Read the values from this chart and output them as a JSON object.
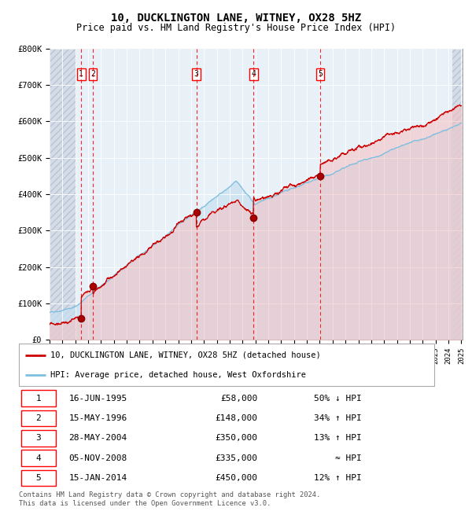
{
  "title": "10, DUCKLINGTON LANE, WITNEY, OX28 5HZ",
  "subtitle": "Price paid vs. HM Land Registry's House Price Index (HPI)",
  "title_fontsize": 10,
  "subtitle_fontsize": 8.5,
  "hpi_color": "#7fbfdf",
  "price_color": "#cc0000",
  "hpi_fill_color": "#c8dff0",
  "ylim": [
    0,
    800000
  ],
  "yticks": [
    0,
    100000,
    200000,
    300000,
    400000,
    500000,
    600000,
    700000,
    800000
  ],
  "ytick_labels": [
    "£0",
    "£100K",
    "£200K",
    "£300K",
    "£400K",
    "£500K",
    "£600K",
    "£700K",
    "£800K"
  ],
  "transactions": [
    {
      "num": 1,
      "year": 1995.46,
      "price": 58000
    },
    {
      "num": 2,
      "year": 1996.37,
      "price": 148000
    },
    {
      "num": 3,
      "year": 2004.41,
      "price": 350000
    },
    {
      "num": 4,
      "year": 2008.85,
      "price": 335000
    },
    {
      "num": 5,
      "year": 2014.04,
      "price": 450000
    }
  ],
  "legend_line1": "10, DUCKLINGTON LANE, WITNEY, OX28 5HZ (detached house)",
  "legend_line2": "HPI: Average price, detached house, West Oxfordshire",
  "footnote": "Contains HM Land Registry data © Crown copyright and database right 2024.\nThis data is licensed under the Open Government Licence v3.0.",
  "table_rows": [
    [
      "1",
      "16-JUN-1995",
      "£58,000",
      "50% ↓ HPI"
    ],
    [
      "2",
      "15-MAY-1996",
      "£148,000",
      "34% ↑ HPI"
    ],
    [
      "3",
      "28-MAY-2004",
      "£350,000",
      "13% ↑ HPI"
    ],
    [
      "4",
      "05-NOV-2008",
      "£335,000",
      "≈ HPI"
    ],
    [
      "5",
      "15-JAN-2014",
      "£450,000",
      "12% ↑ HPI"
    ]
  ]
}
